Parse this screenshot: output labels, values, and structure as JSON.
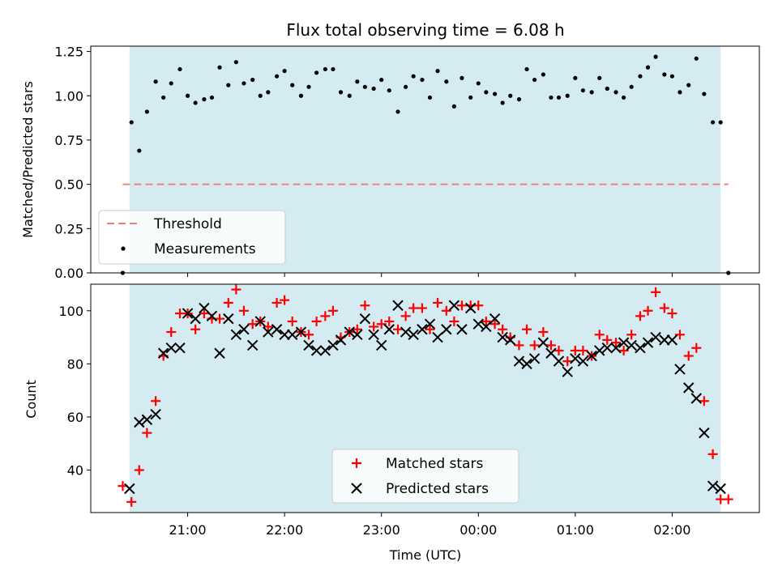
{
  "chart_data": [
    {
      "type": "scatter",
      "title": "Flux total observing time = 6.08 h",
      "xlabel": "",
      "ylabel": "Matched/Predicted stars",
      "ylim": [
        0,
        1.28
      ],
      "yticks": [
        "0.00",
        "0.25",
        "0.50",
        "0.75",
        "1.00",
        "1.25"
      ],
      "ytick_values": [
        0,
        0.25,
        0.5,
        0.75,
        1.0,
        1.25
      ],
      "x_unit": "hours from 00:00 UTC",
      "xlim": [
        -4.0,
        2.9
      ],
      "shaded_interval": {
        "start": -3.6,
        "end": 2.5,
        "color": "#d4ebf1"
      },
      "legend": {
        "position": "lower-left",
        "entries": [
          "Threshold",
          "Measurements"
        ]
      },
      "threshold": {
        "name": "Threshold",
        "value": 0.5,
        "x_start": -3.67,
        "x_end": 2.58,
        "color": "#f08080"
      },
      "series": [
        {
          "name": "Measurements",
          "color": "#000000",
          "x": [
            -3.67,
            -3.58,
            -3.5,
            -3.42,
            -3.33,
            -3.25,
            -3.17,
            -3.08,
            -3.0,
            -2.92,
            -2.83,
            -2.75,
            -2.67,
            -2.58,
            -2.5,
            -2.42,
            -2.33,
            -2.25,
            -2.17,
            -2.08,
            -2.0,
            -1.92,
            -1.83,
            -1.75,
            -1.67,
            -1.58,
            -1.5,
            -1.42,
            -1.33,
            -1.25,
            -1.17,
            -1.08,
            -1.0,
            -0.92,
            -0.83,
            -0.75,
            -0.67,
            -0.58,
            -0.5,
            -0.42,
            -0.33,
            -0.25,
            -0.17,
            -0.08,
            0.0,
            0.08,
            0.17,
            0.25,
            0.33,
            0.42,
            0.5,
            0.58,
            0.67,
            0.75,
            0.83,
            0.92,
            1.0,
            1.08,
            1.17,
            1.25,
            1.33,
            1.42,
            1.5,
            1.58,
            1.67,
            1.75,
            1.83,
            1.92,
            2.0,
            2.08,
            2.17,
            2.25,
            2.33,
            2.42,
            2.5,
            2.58
          ],
          "y": [
            0.0,
            0.85,
            0.69,
            0.91,
            1.08,
            0.99,
            1.07,
            1.15,
            1.0,
            0.96,
            0.98,
            0.99,
            1.16,
            1.06,
            1.19,
            1.07,
            1.09,
            1.0,
            1.02,
            1.11,
            1.14,
            1.06,
            1.0,
            1.05,
            1.13,
            1.15,
            1.15,
            1.02,
            1.0,
            1.08,
            1.05,
            1.04,
            1.09,
            1.03,
            0.91,
            1.05,
            1.11,
            1.09,
            0.99,
            1.14,
            1.08,
            0.94,
            1.1,
            0.99,
            1.07,
            1.02,
            1.01,
            0.96,
            1.0,
            0.98,
            1.15,
            1.09,
            1.12,
            0.99,
            0.99,
            1.0,
            1.1,
            1.03,
            1.02,
            1.1,
            1.04,
            1.02,
            0.99,
            1.05,
            1.11,
            1.16,
            1.22,
            1.12,
            1.11,
            1.02,
            1.06,
            1.21,
            1.01,
            0.85,
            0.85,
            0.0
          ]
        }
      ]
    },
    {
      "type": "scatter",
      "title": "",
      "xlabel": "Time (UTC)",
      "ylabel": "Count",
      "ylim": [
        24,
        110
      ],
      "yticks": [
        "40",
        "60",
        "80",
        "100"
      ],
      "ytick_values": [
        40,
        60,
        80,
        100
      ],
      "x_unit": "hours from 00:00 UTC",
      "xlim": [
        -4.0,
        2.9
      ],
      "xticks": [
        "21:00",
        "22:00",
        "23:00",
        "00:00",
        "01:00",
        "02:00"
      ],
      "xtick_values": [
        -3,
        -2,
        -1,
        0,
        1,
        2
      ],
      "shaded_interval": {
        "start": -3.6,
        "end": 2.5,
        "color": "#d4ebf1"
      },
      "legend": {
        "position": "bottom-center",
        "entries": [
          "Matched stars",
          "Predicted stars"
        ]
      },
      "series": [
        {
          "name": "Matched stars",
          "marker": "plus",
          "color": "#ff0000",
          "x": [
            -3.67,
            -3.58,
            -3.5,
            -3.42,
            -3.33,
            -3.25,
            -3.17,
            -3.08,
            -3.0,
            -2.92,
            -2.83,
            -2.75,
            -2.67,
            -2.58,
            -2.5,
            -2.42,
            -2.33,
            -2.25,
            -2.17,
            -2.08,
            -2.0,
            -1.92,
            -1.83,
            -1.75,
            -1.67,
            -1.58,
            -1.5,
            -1.42,
            -1.33,
            -1.25,
            -1.17,
            -1.08,
            -1.0,
            -0.92,
            -0.83,
            -0.75,
            -0.67,
            -0.58,
            -0.5,
            -0.42,
            -0.33,
            -0.25,
            -0.17,
            -0.08,
            0.0,
            0.08,
            0.17,
            0.25,
            0.33,
            0.42,
            0.5,
            0.58,
            0.67,
            0.75,
            0.83,
            0.92,
            1.0,
            1.08,
            1.17,
            1.25,
            1.33,
            1.42,
            1.5,
            1.58,
            1.67,
            1.75,
            1.83,
            1.92,
            2.0,
            2.08,
            2.17,
            2.25,
            2.33,
            2.42,
            2.5,
            2.58
          ],
          "y": [
            34,
            28,
            40,
            54,
            66,
            83,
            92,
            99,
            99,
            93,
            99,
            97,
            97,
            103,
            108,
            100,
            95,
            96,
            94,
            103,
            104,
            96,
            92,
            91,
            96,
            98,
            100,
            90,
            92,
            93,
            102,
            94,
            95,
            96,
            93,
            98,
            101,
            101,
            93,
            103,
            100,
            96,
            102,
            102,
            102,
            96,
            95,
            93,
            90,
            87,
            93,
            87,
            92,
            87,
            85,
            81,
            85,
            85,
            83,
            91,
            89,
            88,
            85,
            91,
            98,
            100,
            107,
            101,
            99,
            91,
            83,
            86,
            66,
            46,
            29,
            29
          ]
        },
        {
          "name": "Predicted stars",
          "marker": "cross",
          "color": "#000000",
          "x": [
            -3.6,
            -3.5,
            -3.42,
            -3.33,
            -3.25,
            -3.17,
            -3.08,
            -3.0,
            -2.92,
            -2.83,
            -2.75,
            -2.67,
            -2.58,
            -2.5,
            -2.42,
            -2.33,
            -2.25,
            -2.17,
            -2.08,
            -2.0,
            -1.92,
            -1.83,
            -1.75,
            -1.67,
            -1.58,
            -1.5,
            -1.42,
            -1.33,
            -1.25,
            -1.17,
            -1.08,
            -1.0,
            -0.92,
            -0.83,
            -0.75,
            -0.67,
            -0.58,
            -0.5,
            -0.42,
            -0.33,
            -0.25,
            -0.17,
            -0.08,
            0.0,
            0.08,
            0.17,
            0.25,
            0.33,
            0.42,
            0.5,
            0.58,
            0.67,
            0.75,
            0.83,
            0.92,
            1.0,
            1.08,
            1.17,
            1.25,
            1.33,
            1.42,
            1.5,
            1.58,
            1.67,
            1.75,
            1.83,
            1.92,
            2.0,
            2.08,
            2.17,
            2.25,
            2.33,
            2.42,
            2.5
          ],
          "y": [
            33,
            58,
            59,
            61,
            84,
            86,
            86,
            99,
            97,
            101,
            98,
            84,
            97,
            91,
            93,
            87,
            96,
            92,
            93,
            91,
            91,
            92,
            87,
            85,
            85,
            87,
            89,
            92,
            91,
            97,
            91,
            87,
            93,
            102,
            92,
            91,
            93,
            95,
            90,
            93,
            102,
            93,
            101,
            95,
            94,
            97,
            90,
            89,
            81,
            80,
            82,
            88,
            84,
            81,
            77,
            82,
            81,
            83,
            85,
            86,
            86,
            88,
            87,
            86,
            88,
            90,
            89,
            89,
            78,
            71,
            67,
            54,
            34,
            33
          ]
        }
      ]
    }
  ]
}
